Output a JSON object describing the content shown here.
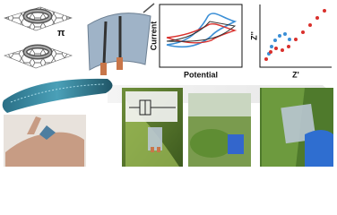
{
  "labels": {
    "pi": "π",
    "cv_y_axis": "Current",
    "cv_x_axis": "Potential",
    "eis_y_axis": "Z''",
    "eis_x_axis": "Z'"
  }
}
